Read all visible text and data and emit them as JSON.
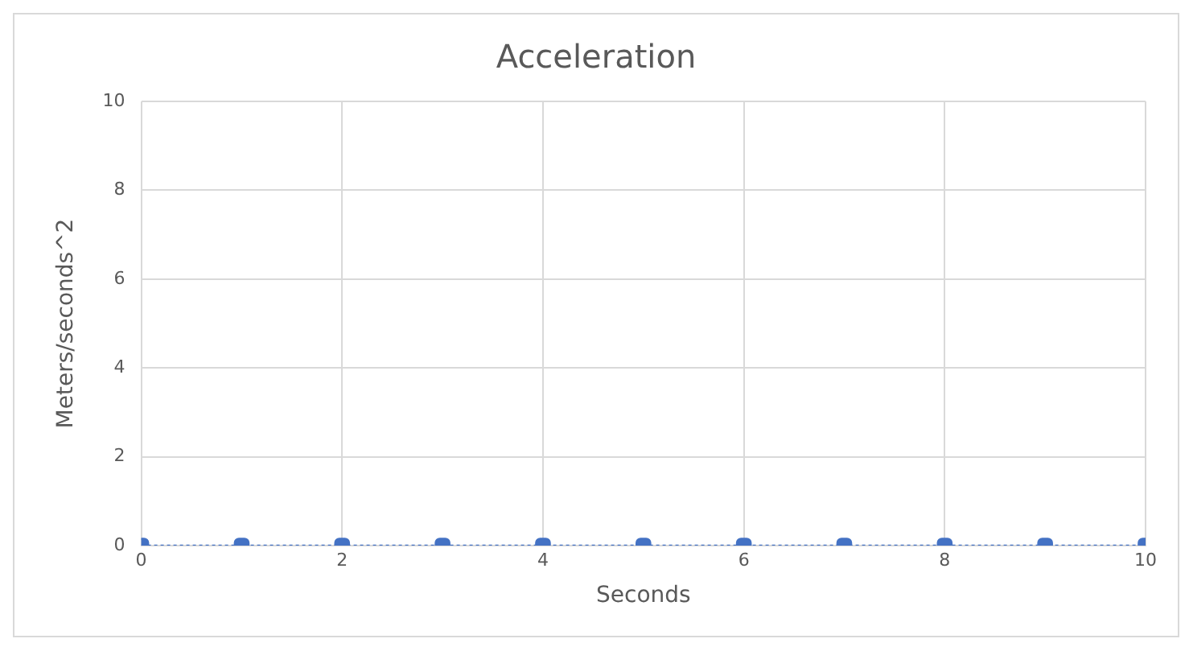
{
  "chart_data": {
    "type": "scatter",
    "title": "Acceleration",
    "xlabel": "Seconds",
    "ylabel": "Meters/seconds^2",
    "x": [
      0,
      1,
      2,
      3,
      4,
      5,
      6,
      7,
      8,
      9,
      10
    ],
    "series": [
      {
        "color": "#4472c4",
        "values": [
          0,
          0,
          0,
          0,
          0,
          0,
          0,
          0,
          0,
          0,
          0
        ]
      }
    ],
    "xlim": [
      0,
      10
    ],
    "xticks": [
      0,
      2,
      4,
      6,
      8,
      10
    ],
    "ylim": [
      0,
      10
    ],
    "yticks": [
      0,
      2,
      4,
      6,
      8,
      10
    ],
    "grid": true,
    "legend": false,
    "marker": "square",
    "line_style": "dotted"
  }
}
